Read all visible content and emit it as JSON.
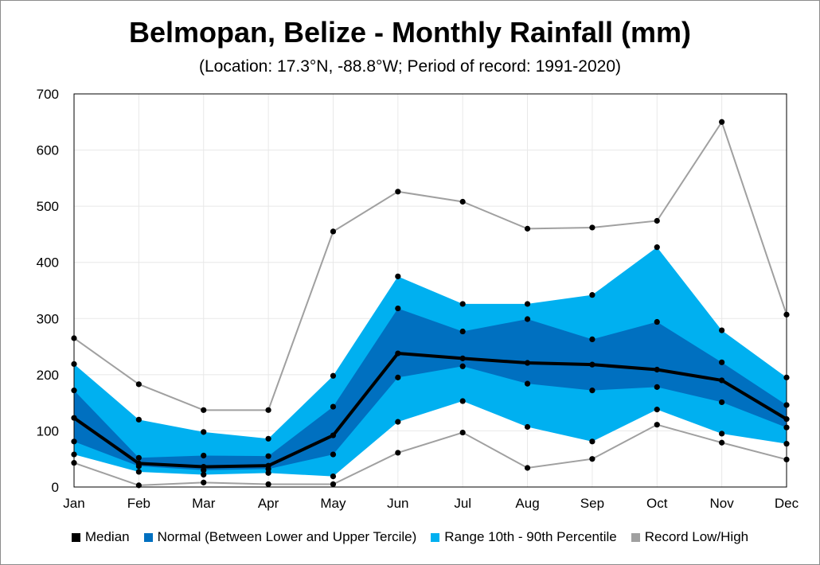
{
  "chart_data": {
    "type": "area",
    "title": "Belmopan, Belize - Monthly Rainfall (mm)",
    "subtitle": "(Location: 17.3°N, -88.8°W; Period of record: 1991-2020)",
    "xlabel": "",
    "ylabel": "",
    "ylim": [
      0,
      700
    ],
    "yticks": [
      0,
      100,
      200,
      300,
      400,
      500,
      600,
      700
    ],
    "grid": true,
    "legend_position": "bottom",
    "categories": [
      "Jan",
      "Feb",
      "Mar",
      "Apr",
      "May",
      "Jun",
      "Jul",
      "Aug",
      "Sep",
      "Oct",
      "Nov",
      "Dec"
    ],
    "series": [
      {
        "name": "Median",
        "role": "median",
        "color": "#000000",
        "values": [
          123,
          42,
          36,
          38,
          92,
          238,
          229,
          221,
          218,
          209,
          190,
          121
        ]
      },
      {
        "name": "Normal (Between Lower and Upper Tercile)",
        "role": "tercile-band",
        "color": "#0070c0",
        "lower": [
          81,
          37,
          30,
          32,
          58,
          195,
          215,
          184,
          172,
          178,
          151,
          106
        ],
        "upper": [
          172,
          52,
          56,
          55,
          143,
          318,
          277,
          299,
          263,
          294,
          222,
          146
        ]
      },
      {
        "name": "Range 10th - 90th Percentile",
        "role": "percentile-band",
        "color": "#00b0f0",
        "lower": [
          58,
          27,
          22,
          25,
          19,
          116,
          153,
          107,
          81,
          138,
          95,
          77
        ],
        "upper": [
          219,
          120,
          98,
          86,
          198,
          375,
          326,
          326,
          342,
          427,
          279,
          195
        ]
      },
      {
        "name": "Record Low/High",
        "role": "record",
        "color": "#a0a0a0",
        "low": [
          43,
          3,
          8,
          5,
          5,
          61,
          97,
          34,
          50,
          111,
          79,
          49
        ],
        "high": [
          265,
          183,
          137,
          137,
          455,
          526,
          508,
          460,
          462,
          474,
          650,
          307
        ]
      }
    ]
  }
}
